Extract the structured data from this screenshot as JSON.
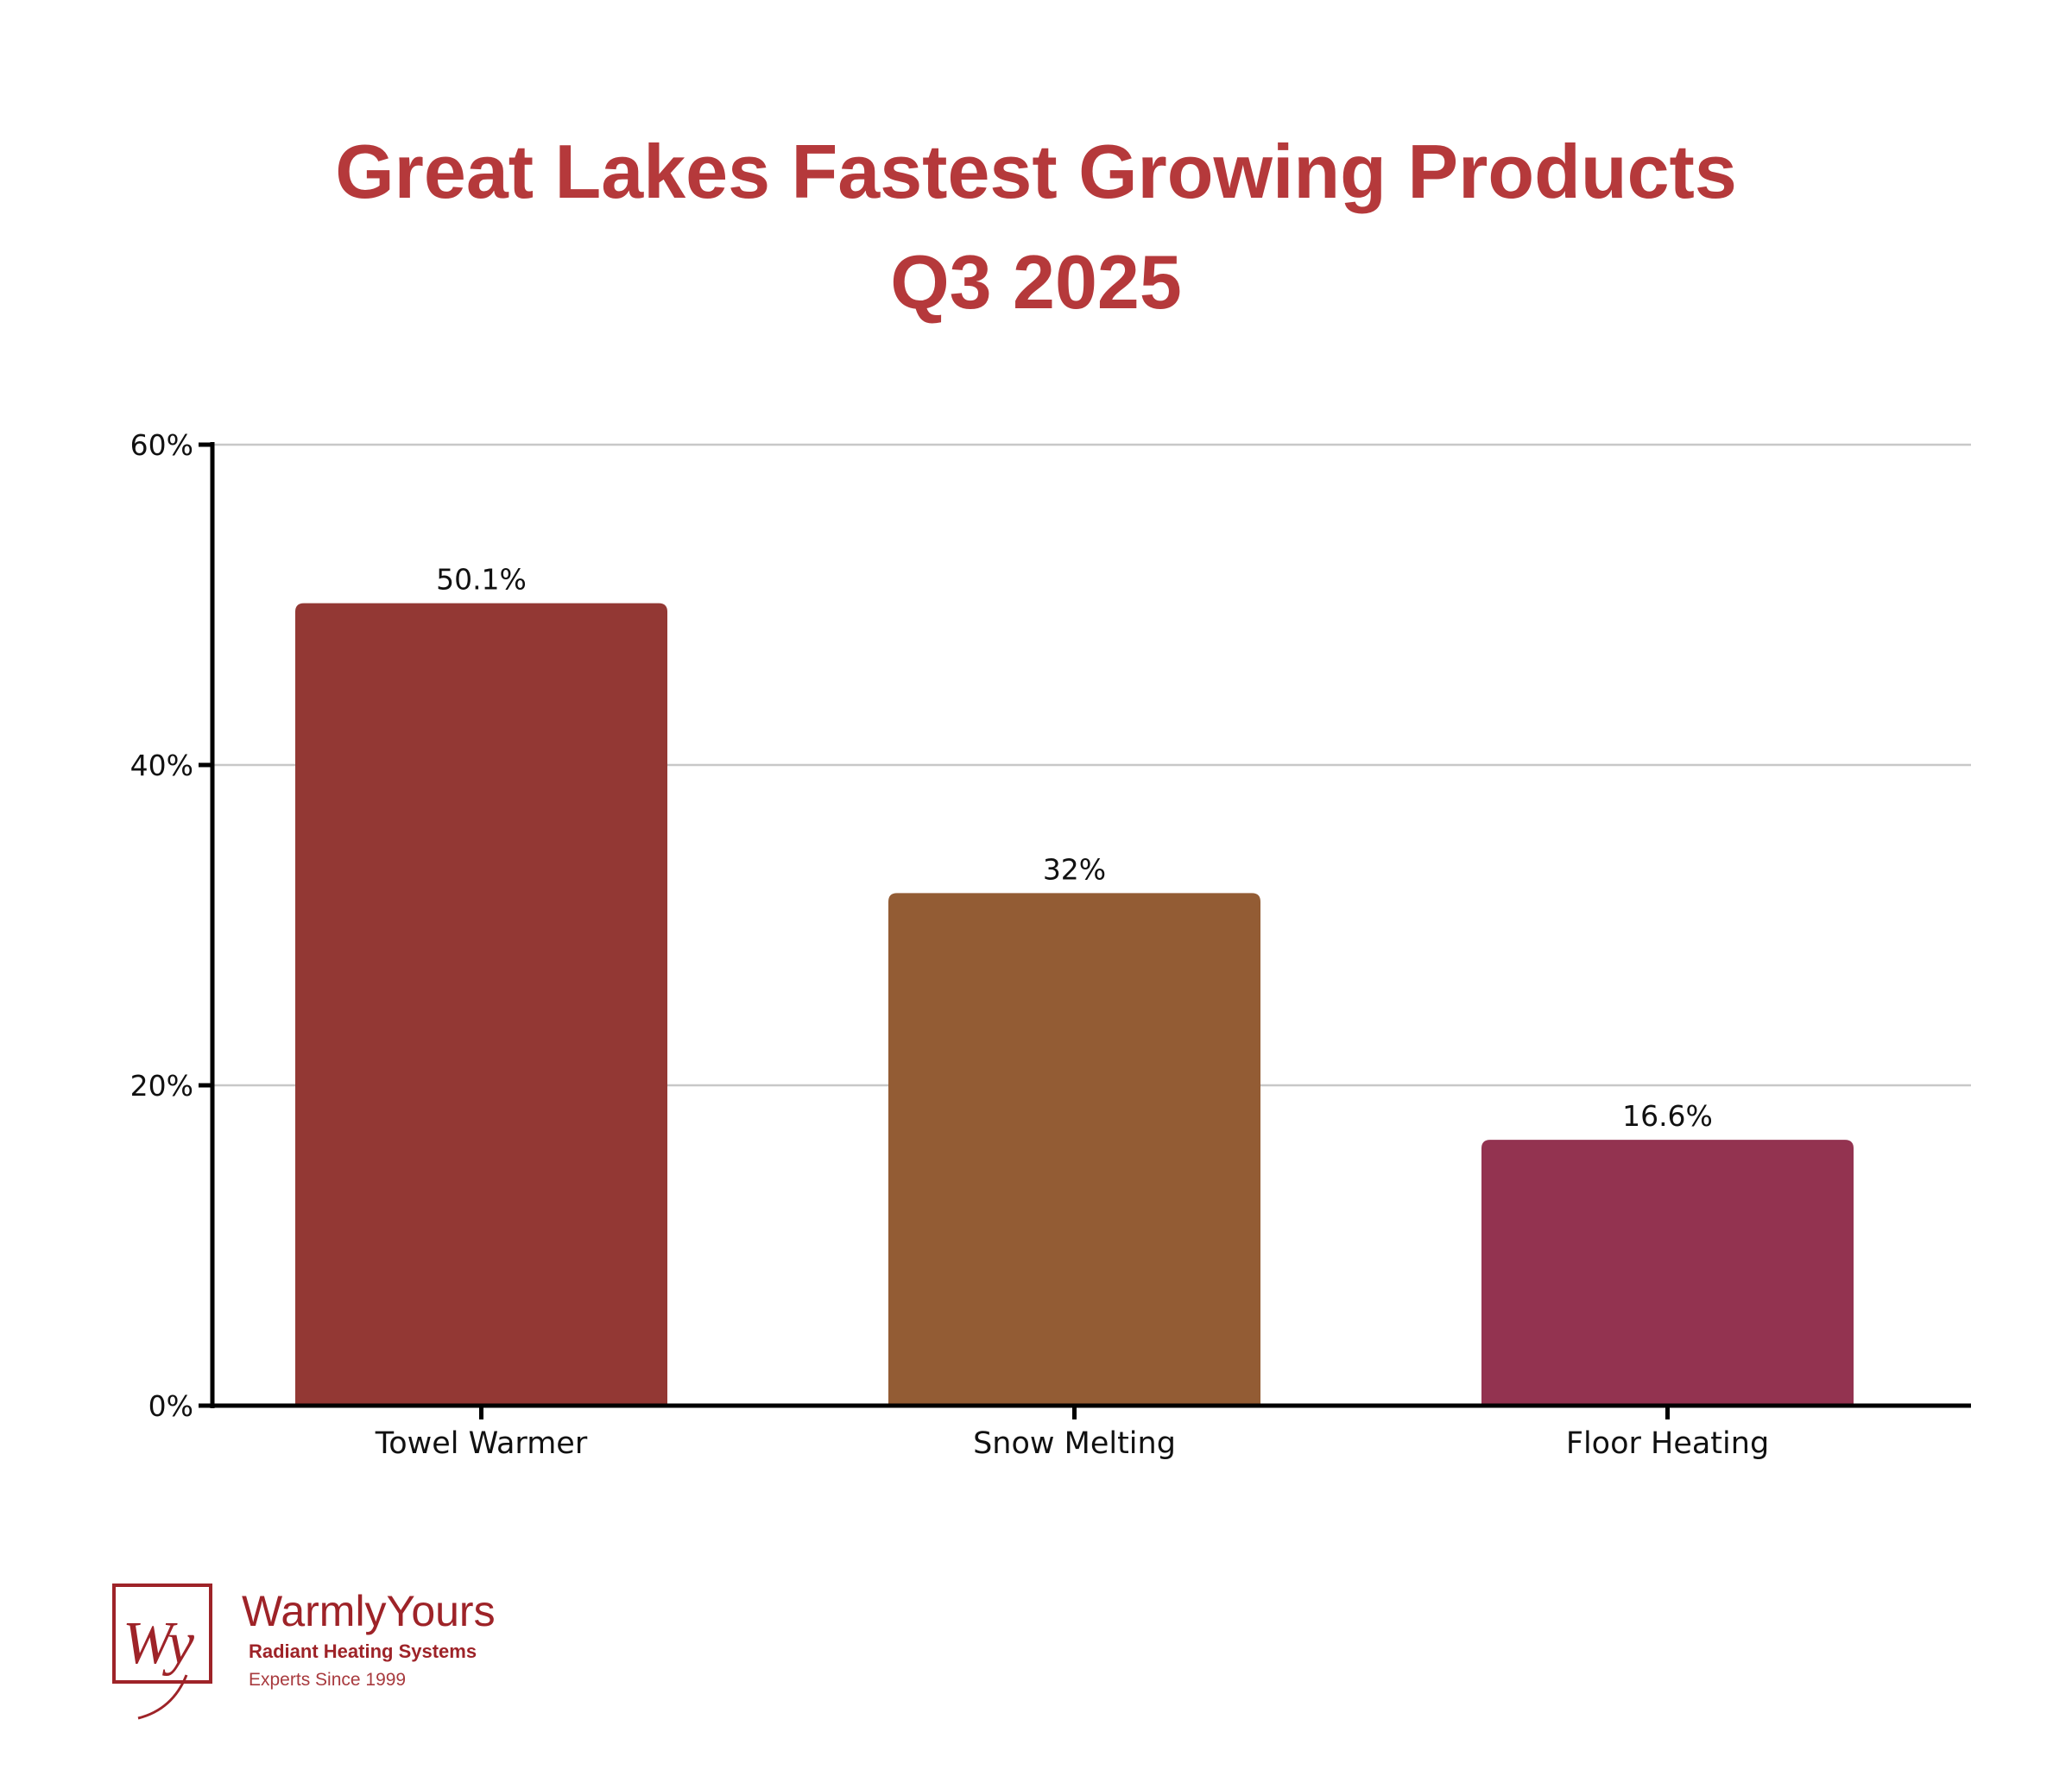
{
  "chart_data": {
    "type": "bar",
    "title": "Great Lakes Fastest Growing Products",
    "subtitle": "Q3 2025",
    "categories": [
      "Towel Warmer",
      "Snow Melting",
      "Floor Heating"
    ],
    "values": [
      50.1,
      32,
      16.6
    ],
    "data_labels": [
      "50.1%",
      "32%",
      "16.6%"
    ],
    "colors": [
      "#933834",
      "#935c34",
      "#933350"
    ],
    "xlabel": "",
    "ylabel": "",
    "ylim": [
      0,
      60
    ],
    "yticks": [
      0,
      20,
      40,
      60
    ],
    "ytick_labels": [
      "0%",
      "20%",
      "40%",
      "60%"
    ],
    "grid": true,
    "title_color": "#b5393b"
  },
  "logo": {
    "brand": "WarmlyYours",
    "tagline": "Radiant Heating Systems",
    "since": "Experts Since 1999",
    "monogram": "Wy",
    "color": "#9e2328"
  }
}
